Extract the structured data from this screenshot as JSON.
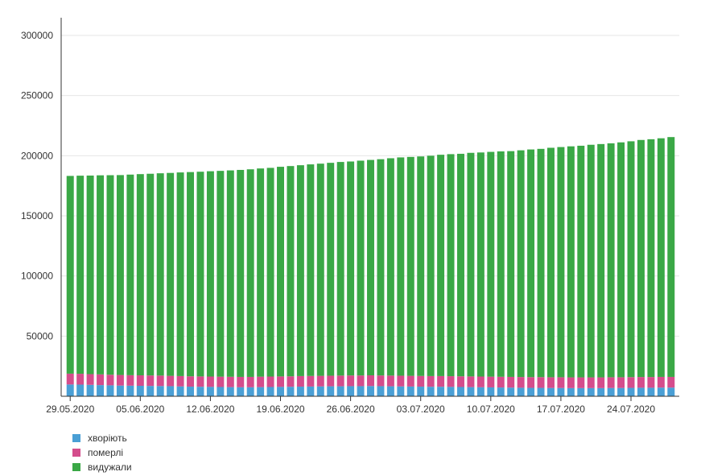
{
  "chart_data": {
    "type": "bar",
    "stacked": true,
    "ylim": [
      0,
      300000
    ],
    "yticks": [
      50000,
      100000,
      150000,
      200000,
      250000,
      300000
    ],
    "grid": true,
    "legend_position": "bottom-left",
    "x_tick_labels": [
      "29.05.2020",
      "05.06.2020",
      "12.06.2020",
      "19.06.2020",
      "26.06.2020",
      "03.07.2020",
      "10.07.2020",
      "17.07.2020",
      "24.07.2020"
    ],
    "categories": [
      "29.05.2020",
      "30.05.2020",
      "31.05.2020",
      "01.06.2020",
      "02.06.2020",
      "03.06.2020",
      "04.06.2020",
      "05.06.2020",
      "06.06.2020",
      "07.06.2020",
      "08.06.2020",
      "09.06.2020",
      "10.06.2020",
      "11.06.2020",
      "12.06.2020",
      "13.06.2020",
      "14.06.2020",
      "15.06.2020",
      "16.06.2020",
      "17.06.2020",
      "18.06.2020",
      "19.06.2020",
      "20.06.2020",
      "21.06.2020",
      "22.06.2020",
      "23.06.2020",
      "24.06.2020",
      "25.06.2020",
      "26.06.2020",
      "27.06.2020",
      "28.06.2020",
      "29.06.2020",
      "30.06.2020",
      "01.07.2020",
      "02.07.2020",
      "03.07.2020",
      "04.07.2020",
      "05.07.2020",
      "06.07.2020",
      "07.07.2020",
      "08.07.2020",
      "09.07.2020",
      "10.07.2020",
      "11.07.2020",
      "12.07.2020",
      "13.07.2020",
      "14.07.2020",
      "15.07.2020",
      "16.07.2020",
      "17.07.2020",
      "18.07.2020",
      "19.07.2020",
      "20.07.2020",
      "21.07.2020",
      "22.07.2020",
      "23.07.2020",
      "24.07.2020",
      "25.07.2020",
      "26.07.2020",
      "27.07.2020",
      "28.07.2020"
    ],
    "series": [
      {
        "name": "хворіють",
        "color": "#4a9fd5",
        "values": [
          9800,
          9700,
          9500,
          9300,
          9100,
          8900,
          8800,
          8700,
          8600,
          8500,
          8400,
          8200,
          8000,
          7900,
          7800,
          7700,
          7600,
          7500,
          7500,
          7600,
          7700,
          7800,
          7900,
          8000,
          8100,
          8200,
          8300,
          8300,
          8400,
          8400,
          8500,
          8400,
          8300,
          8200,
          8100,
          8000,
          7900,
          7900,
          7800,
          7700,
          7600,
          7500,
          7400,
          7300,
          7200,
          7100,
          7000,
          7000,
          6900,
          6900,
          6800,
          6800,
          6800,
          6800,
          6900,
          6900,
          7000,
          7100,
          7100,
          7200,
          7200
        ]
      },
      {
        "name": "померлі",
        "color": "#d44d8c",
        "values": [
          9000,
          9000,
          8900,
          8900,
          8800,
          8800,
          8700,
          8700,
          8700,
          8700,
          8600,
          8600,
          8600,
          8600,
          8600,
          8600,
          8600,
          8600,
          8600,
          8700,
          8700,
          8700,
          8700,
          8800,
          8800,
          8800,
          8800,
          8900,
          8900,
          8900,
          8900,
          8900,
          8900,
          8900,
          8900,
          8900,
          8900,
          8900,
          8900,
          8900,
          8900,
          8900,
          8900,
          8900,
          8900,
          8900,
          8900,
          8900,
          8900,
          8900,
          8900,
          8900,
          8900,
          8900,
          8900,
          8900,
          8900,
          8900,
          8900,
          8900,
          8900
        ]
      },
      {
        "name": "видужали",
        "color": "#3aa846",
        "values": [
          164400,
          164700,
          165100,
          165500,
          165900,
          166200,
          166800,
          167300,
          167700,
          168200,
          168700,
          169300,
          169800,
          170200,
          170700,
          171100,
          171600,
          172100,
          172600,
          173100,
          173500,
          174300,
          174800,
          175300,
          175900,
          176400,
          177000,
          177600,
          177900,
          178600,
          179100,
          179800,
          180700,
          181500,
          182000,
          182500,
          183200,
          184000,
          184600,
          185000,
          185900,
          186300,
          186900,
          187400,
          187700,
          188500,
          189300,
          189800,
          190800,
          191400,
          192100,
          192600,
          193400,
          194000,
          194500,
          195300,
          196100,
          197100,
          197700,
          198400,
          199400
        ]
      }
    ]
  }
}
